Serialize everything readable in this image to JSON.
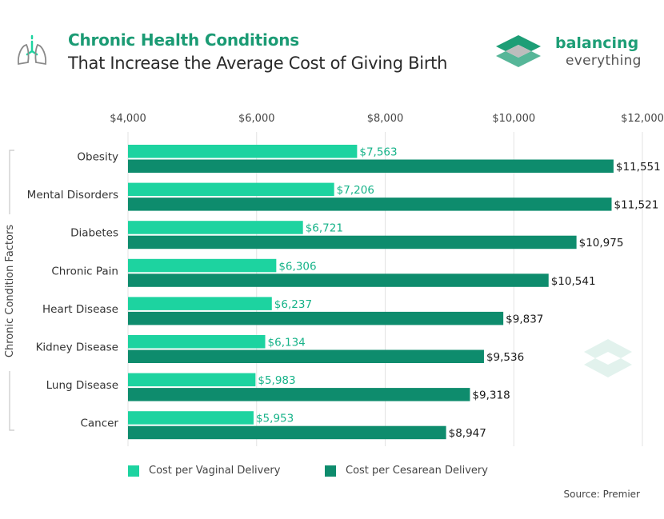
{
  "header": {
    "title_line1": "Chronic Health Conditions",
    "title_line2": "That Increase the Average Cost of Giving Birth",
    "icon": "lungs-icon"
  },
  "brand": {
    "name_line1": "balancing",
    "name_line2": "everything",
    "icon": "balancing-everything-logo"
  },
  "colors": {
    "vaginal": "#1dd3a0",
    "cesarean": "#0e8c6d",
    "label_vaginal": "#17b389",
    "label_cesarean": "#1a1a1a",
    "title": "#1b9b74",
    "grid": "#e3e3e3"
  },
  "legend": {
    "vaginal_label": "Cost per Vaginal Delivery",
    "cesarean_label": "Cost per Cesarean Delivery"
  },
  "source": "Source: Premier",
  "chart_data": {
    "type": "bar",
    "orientation": "horizontal",
    "ylabel": "Chronic Condition Factors",
    "xlim": [
      4000,
      12000
    ],
    "xticks": [
      4000,
      6000,
      8000,
      10000,
      12000
    ],
    "xtick_labels": [
      "$4,000",
      "$6,000",
      "$8,000",
      "$10,000",
      "$12,000"
    ],
    "axis_position": "top",
    "grid": true,
    "legend_position": "bottom-left",
    "categories": [
      "Obesity",
      "Mental Disorders",
      "Diabetes",
      "Chronic Pain",
      "Heart Disease",
      "Kidney Disease",
      "Lung Disease",
      "Cancer"
    ],
    "series": [
      {
        "name": "Cost per Vaginal Delivery",
        "values": [
          7563,
          7206,
          6721,
          6306,
          6237,
          6134,
          5983,
          5953
        ],
        "labels": [
          "$7,563",
          "$7,206",
          "$6,721",
          "$6,306",
          "$6,237",
          "$6,134",
          "$5,983",
          "$5,953"
        ]
      },
      {
        "name": "Cost per Cesarean Delivery",
        "values": [
          11551,
          11521,
          10975,
          10541,
          9837,
          9536,
          9318,
          8947
        ],
        "labels": [
          "$11,551",
          "$11,521",
          "$10,975",
          "$10,541",
          "$9,837",
          "$9,536",
          "$9,318",
          "$8,947"
        ]
      }
    ]
  }
}
